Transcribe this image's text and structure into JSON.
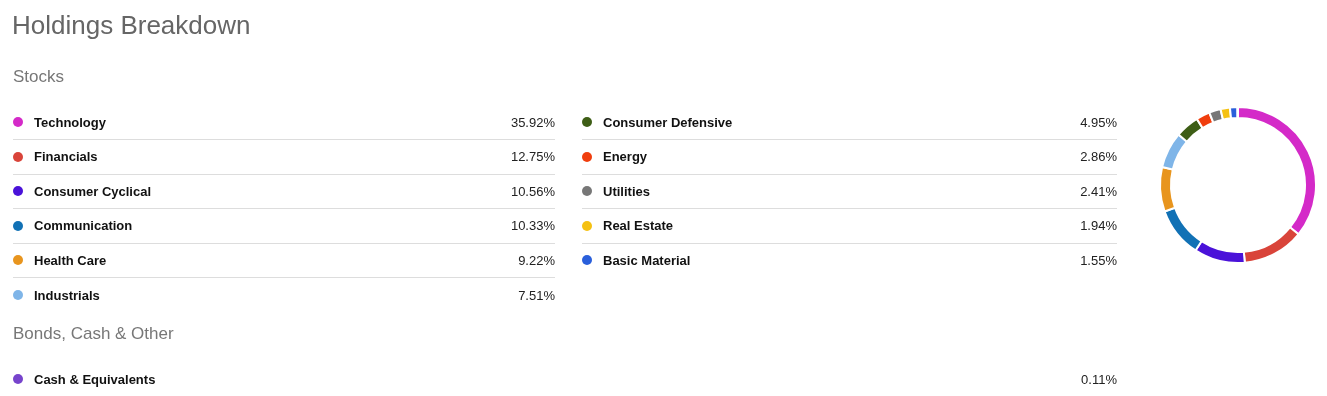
{
  "chart_data": {
    "type": "donut",
    "title": "Holdings Breakdown",
    "annotations": [
      "Stocks",
      "Bonds, Cash & Other"
    ],
    "categories": [
      "Technology",
      "Financials",
      "Consumer Cyclical",
      "Communication",
      "Health Care",
      "Industrials",
      "Consumer Defensive",
      "Energy",
      "Utilities",
      "Real Estate",
      "Basic Material",
      "Cash & Equivalents"
    ],
    "values": [
      35.92,
      12.75,
      10.56,
      10.33,
      9.22,
      7.51,
      4.95,
      2.86,
      2.41,
      1.94,
      1.55,
      0.11
    ],
    "value_labels": [
      "35.92%",
      "12.75%",
      "10.56%",
      "10.33%",
      "9.22%",
      "7.51%",
      "4.95%",
      "2.86%",
      "2.41%",
      "1.94%",
      "1.55%",
      "0.11%"
    ],
    "colors": [
      "#d42ac8",
      "#d9443a",
      "#4a12d9",
      "#1171b5",
      "#e8951e",
      "#7fb5e8",
      "#3e5e16",
      "#f03e0e",
      "#777777",
      "#f5c112",
      "#2a5fdb",
      "#7744cc"
    ],
    "legend": "left"
  }
}
